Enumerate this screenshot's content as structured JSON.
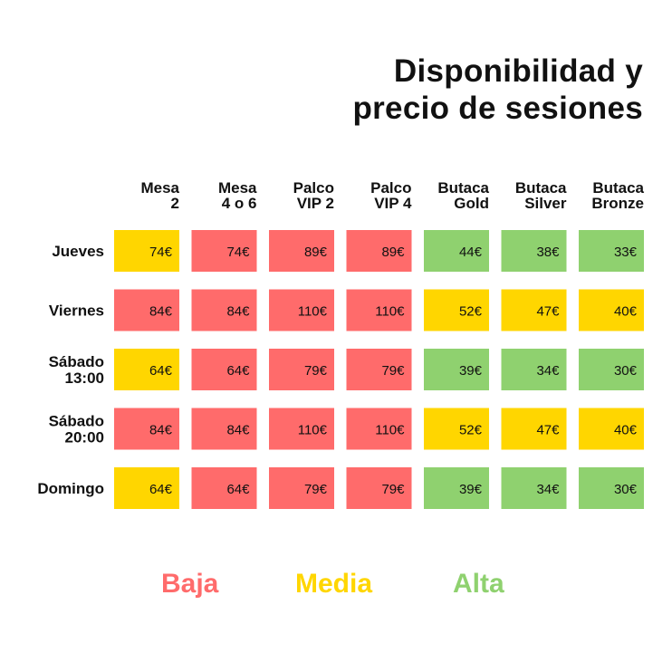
{
  "title": {
    "line1": "Disponibilidad y",
    "line2": "precio de sesiones"
  },
  "colors": {
    "baja": "#ff6b6b",
    "media": "#ffd600",
    "alta": "#8fd16f",
    "text": "#111111"
  },
  "legend": [
    {
      "label": "Baja",
      "key": "baja"
    },
    {
      "label": "Media",
      "key": "media"
    },
    {
      "label": "Alta",
      "key": "alta"
    }
  ],
  "chart_data": {
    "type": "heatmap",
    "columns": [
      [
        "Mesa",
        "2"
      ],
      [
        "Mesa",
        "4 o 6"
      ],
      [
        "Palco",
        "VIP 2"
      ],
      [
        "Palco",
        "VIP 4"
      ],
      [
        "Butaca",
        "Gold"
      ],
      [
        "Butaca",
        "Silver"
      ],
      [
        "Butaca",
        "Bronze"
      ]
    ],
    "rows": [
      [
        "Jueves"
      ],
      [
        "Viernes"
      ],
      [
        "Sábado",
        "13:00"
      ],
      [
        "Sábado",
        "20:00"
      ],
      [
        "Domingo"
      ]
    ],
    "prices": [
      [
        "74€",
        "74€",
        "89€",
        "89€",
        "44€",
        "38€",
        "33€"
      ],
      [
        "84€",
        "84€",
        "110€",
        "110€",
        "52€",
        "47€",
        "40€"
      ],
      [
        "64€",
        "64€",
        "79€",
        "79€",
        "39€",
        "34€",
        "30€"
      ],
      [
        "84€",
        "84€",
        "110€",
        "110€",
        "52€",
        "47€",
        "40€"
      ],
      [
        "64€",
        "64€",
        "79€",
        "79€",
        "39€",
        "34€",
        "30€"
      ]
    ],
    "availability": [
      [
        "media",
        "baja",
        "baja",
        "baja",
        "alta",
        "alta",
        "alta"
      ],
      [
        "baja",
        "baja",
        "baja",
        "baja",
        "media",
        "media",
        "media"
      ],
      [
        "media",
        "baja",
        "baja",
        "baja",
        "alta",
        "alta",
        "alta"
      ],
      [
        "baja",
        "baja",
        "baja",
        "baja",
        "media",
        "media",
        "media"
      ],
      [
        "media",
        "baja",
        "baja",
        "baja",
        "alta",
        "alta",
        "alta"
      ]
    ]
  }
}
